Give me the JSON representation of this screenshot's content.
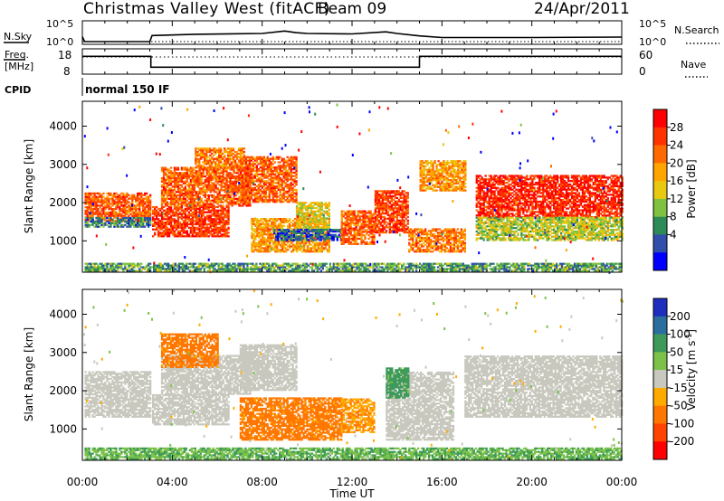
{
  "header": {
    "station": "Christmas Valley West (fitACF)",
    "beam": "Beam 09",
    "date": "24/Apr/2011"
  },
  "colors": {
    "power_scale": [
      "#0000ff",
      "#2f4faa",
      "#2e8b57",
      "#7fc241",
      "#e8c810",
      "#ffa500",
      "#ff6a00",
      "#ff3300",
      "#ff0000"
    ],
    "velocity_scale": [
      "#1e2fbf",
      "#2a6e9e",
      "#3d9a5a",
      "#7cc24a",
      "#c8c8be",
      "#ffaa00",
      "#ff7700",
      "#ff4400",
      "#ff0000"
    ]
  },
  "chart_data": [
    {
      "type": "line",
      "panel": "N.Sky / N.Search",
      "left_label": "N.Sky",
      "right_label": "N.Search",
      "left_ticks": [
        "10^5",
        "10^0"
      ],
      "right_ticks": [
        "10^5",
        "10^0"
      ],
      "x_ticks": [
        "00:00",
        "04:00",
        "08:00",
        "12:00",
        "16:00",
        "20:00",
        "00:00"
      ],
      "series": [
        {
          "name": "N.Sky",
          "x": [
            0,
            0.1,
            3,
            3.1,
            5,
            8,
            9,
            9.5,
            10,
            12,
            13.5,
            14,
            15,
            16,
            20,
            24
          ],
          "y": [
            1.2,
            0.0,
            0.0,
            1.5,
            1.8,
            2.0,
            2.6,
            2.2,
            2.0,
            1.9,
            2.4,
            2.0,
            1.4,
            1.0,
            1.0,
            1.1
          ]
        }
      ]
    },
    {
      "type": "line",
      "panel": "Freq / Nave",
      "left_label": "Freq. [MHz]",
      "right_label": "Nave",
      "left_ticks": [
        "18",
        "8"
      ],
      "right_ticks": [
        "60",
        "0"
      ],
      "x_ticks": [
        "00:00",
        "04:00",
        "08:00",
        "12:00",
        "16:00",
        "20:00",
        "00:00"
      ],
      "series": [
        {
          "name": "Freq.",
          "x": [
            0,
            3.05,
            3.05,
            15.0,
            15.0,
            24
          ],
          "y": [
            15.5,
            15.5,
            10.7,
            10.7,
            15.5,
            15.5
          ]
        }
      ]
    },
    {
      "type": "table",
      "panel": "CPID",
      "label": "CPID",
      "value": "normal 150 IF"
    },
    {
      "type": "heatmap",
      "panel": "Power",
      "ylabel": "Slant Range [km]",
      "yticks": [
        1000,
        2000,
        3000,
        4000
      ],
      "ylim": [
        180,
        4650
      ],
      "xlim": [
        0,
        24
      ],
      "x_ticks": [
        "00:00",
        "04:00",
        "08:00",
        "12:00",
        "16:00",
        "20:00",
        "00:00"
      ],
      "colorbar": {
        "label": "Power [dB]",
        "ticks": [
          4,
          8,
          12,
          16,
          20,
          24,
          28
        ]
      },
      "regions": [
        {
          "t0": 0.1,
          "t1": 3.0,
          "r0": 1500,
          "r1": 2250,
          "v": 24
        },
        {
          "t0": 0.1,
          "t1": 3.0,
          "r0": 1350,
          "r1": 1600,
          "v": 8
        },
        {
          "t0": 3.1,
          "t1": 6.5,
          "r0": 1100,
          "r1": 1900,
          "v": 26
        },
        {
          "t0": 3.5,
          "t1": 7.5,
          "r0": 1900,
          "r1": 2900,
          "v": 24
        },
        {
          "t0": 5.0,
          "t1": 7.2,
          "r0": 2900,
          "r1": 3400,
          "v": 22
        },
        {
          "t0": 7.0,
          "t1": 9.5,
          "r0": 2000,
          "r1": 3200,
          "v": 24
        },
        {
          "t0": 7.5,
          "t1": 11.0,
          "r0": 700,
          "r1": 1600,
          "v": 20
        },
        {
          "t0": 9.5,
          "t1": 11.0,
          "r0": 1300,
          "r1": 2000,
          "v": 16
        },
        {
          "t0": 8.5,
          "t1": 11.5,
          "r0": 1000,
          "r1": 1300,
          "v": 6
        },
        {
          "t0": 11.5,
          "t1": 13.0,
          "r0": 900,
          "r1": 1800,
          "v": 24
        },
        {
          "t0": 13.0,
          "t1": 14.5,
          "r0": 1200,
          "r1": 2300,
          "v": 26
        },
        {
          "t0": 14.5,
          "t1": 17.0,
          "r0": 700,
          "r1": 1300,
          "v": 22
        },
        {
          "t0": 15.0,
          "t1": 17.0,
          "r0": 2300,
          "r1": 3100,
          "v": 20
        },
        {
          "t0": 17.5,
          "t1": 24.0,
          "r0": 1600,
          "r1": 2700,
          "v": 28
        },
        {
          "t0": 17.5,
          "t1": 24.0,
          "r0": 1000,
          "r1": 1600,
          "v": 14
        },
        {
          "t0": 0.1,
          "t1": 24.0,
          "r0": 200,
          "r1": 400,
          "v": 10
        }
      ]
    },
    {
      "type": "heatmap",
      "panel": "Velocity",
      "ylabel": "Slant Range [km]",
      "yticks": [
        1000,
        2000,
        3000,
        4000
      ],
      "ylim": [
        180,
        4650
      ],
      "xlim": [
        0,
        24
      ],
      "xlabel": "Time UT",
      "x_ticks": [
        "00:00",
        "04:00",
        "08:00",
        "12:00",
        "16:00",
        "20:00",
        "00:00"
      ],
      "colorbar": {
        "label": "Velocity [m s-1]",
        "ticks": [
          200,
          100,
          50,
          15,
          -15,
          -50,
          -100,
          -200
        ]
      },
      "regions": [
        {
          "t0": 0.1,
          "t1": 3.0,
          "r0": 1300,
          "r1": 2500,
          "v": 0
        },
        {
          "t0": 3.1,
          "t1": 6.5,
          "r0": 1100,
          "r1": 1900,
          "v": 0
        },
        {
          "t0": 3.5,
          "t1": 7.5,
          "r0": 1900,
          "r1": 2900,
          "v": 0
        },
        {
          "t0": 3.5,
          "t1": 6.0,
          "r0": 2600,
          "r1": 3500,
          "v": -40
        },
        {
          "t0": 7.0,
          "t1": 9.5,
          "r0": 2000,
          "r1": 3200,
          "v": 0
        },
        {
          "t0": 7.0,
          "t1": 11.5,
          "r0": 700,
          "r1": 1800,
          "v": -40
        },
        {
          "t0": 11.5,
          "t1": 13.0,
          "r0": 900,
          "r1": 1800,
          "v": -30
        },
        {
          "t0": 13.5,
          "t1": 16.5,
          "r0": 700,
          "r1": 2500,
          "v": 0
        },
        {
          "t0": 13.5,
          "t1": 14.5,
          "r0": 1800,
          "r1": 2600,
          "v": 40
        },
        {
          "t0": 17.0,
          "t1": 24.0,
          "r0": 1300,
          "r1": 2900,
          "v": 0
        },
        {
          "t0": 0.1,
          "t1": 24.0,
          "r0": 200,
          "r1": 500,
          "v": 30
        }
      ]
    }
  ]
}
